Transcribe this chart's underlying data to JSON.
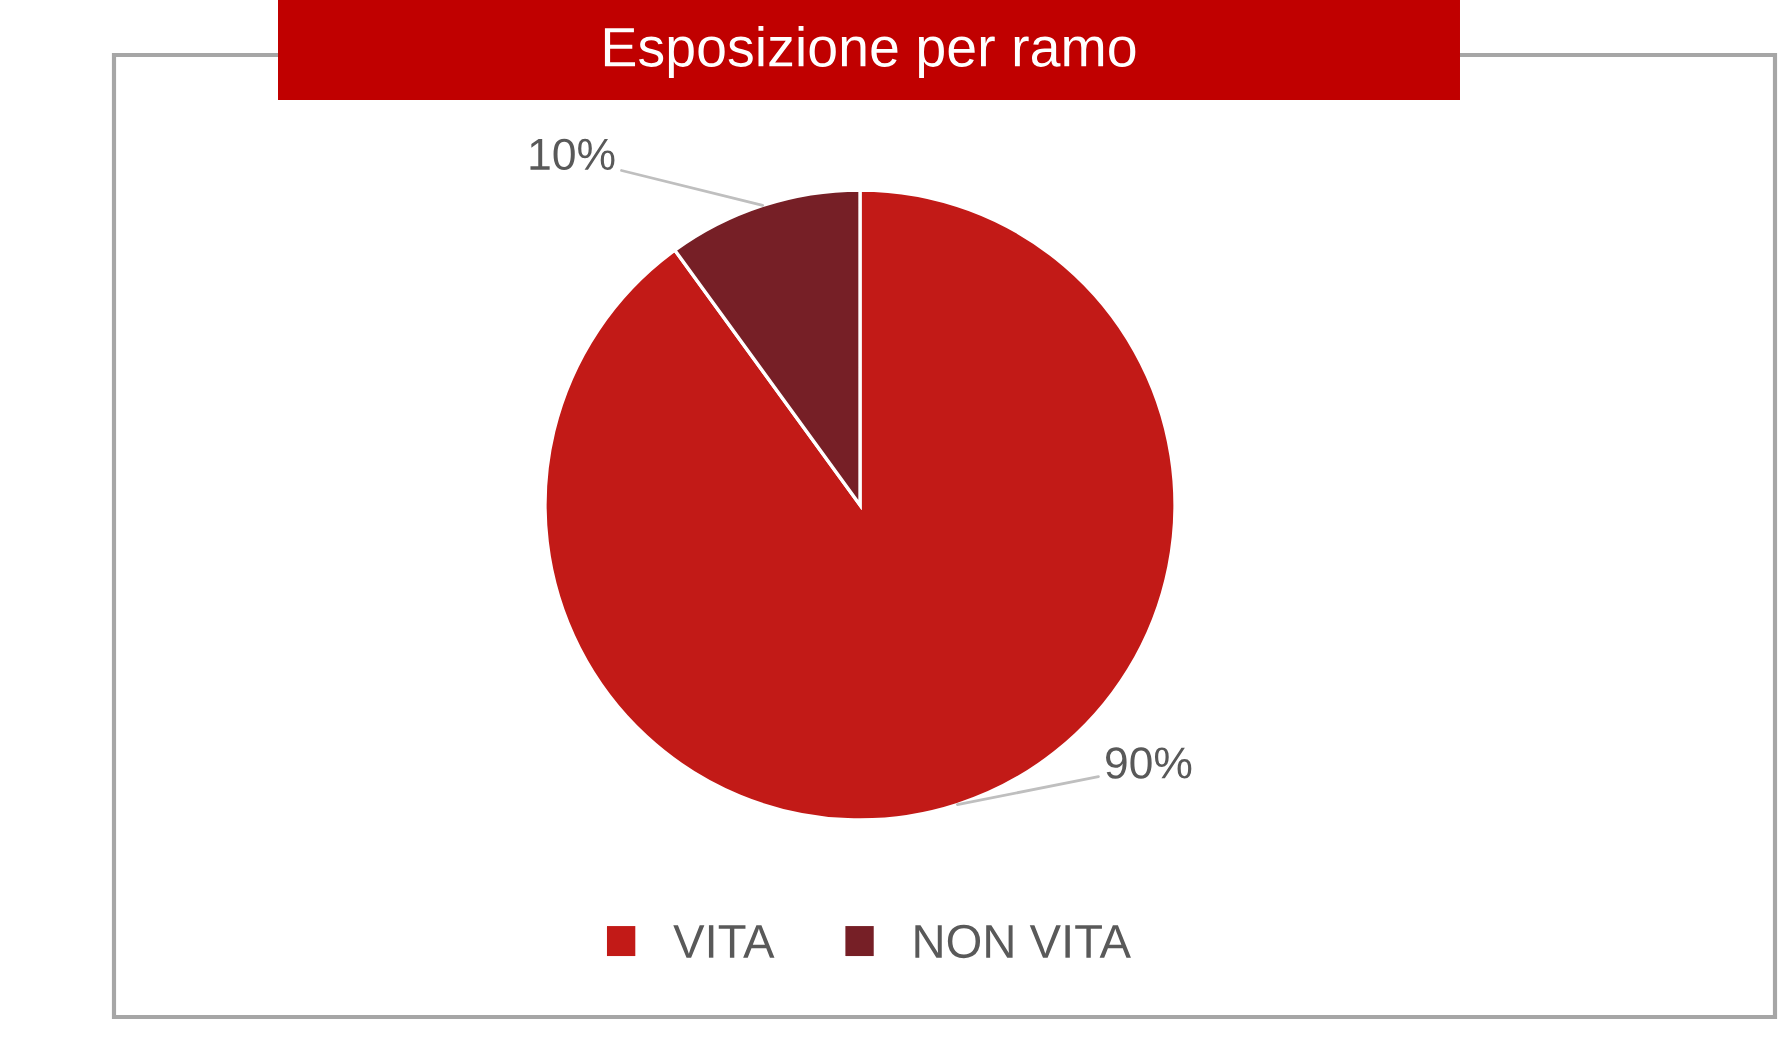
{
  "chart_data": {
    "type": "pie",
    "title": "Esposizione per ramo",
    "categories": [
      "VITA",
      "NON VITA"
    ],
    "values": [
      90,
      10
    ],
    "colors": [
      "#c21a17",
      "#761f26"
    ],
    "value_labels": [
      "90%",
      "10%"
    ],
    "legend": "bottom"
  }
}
